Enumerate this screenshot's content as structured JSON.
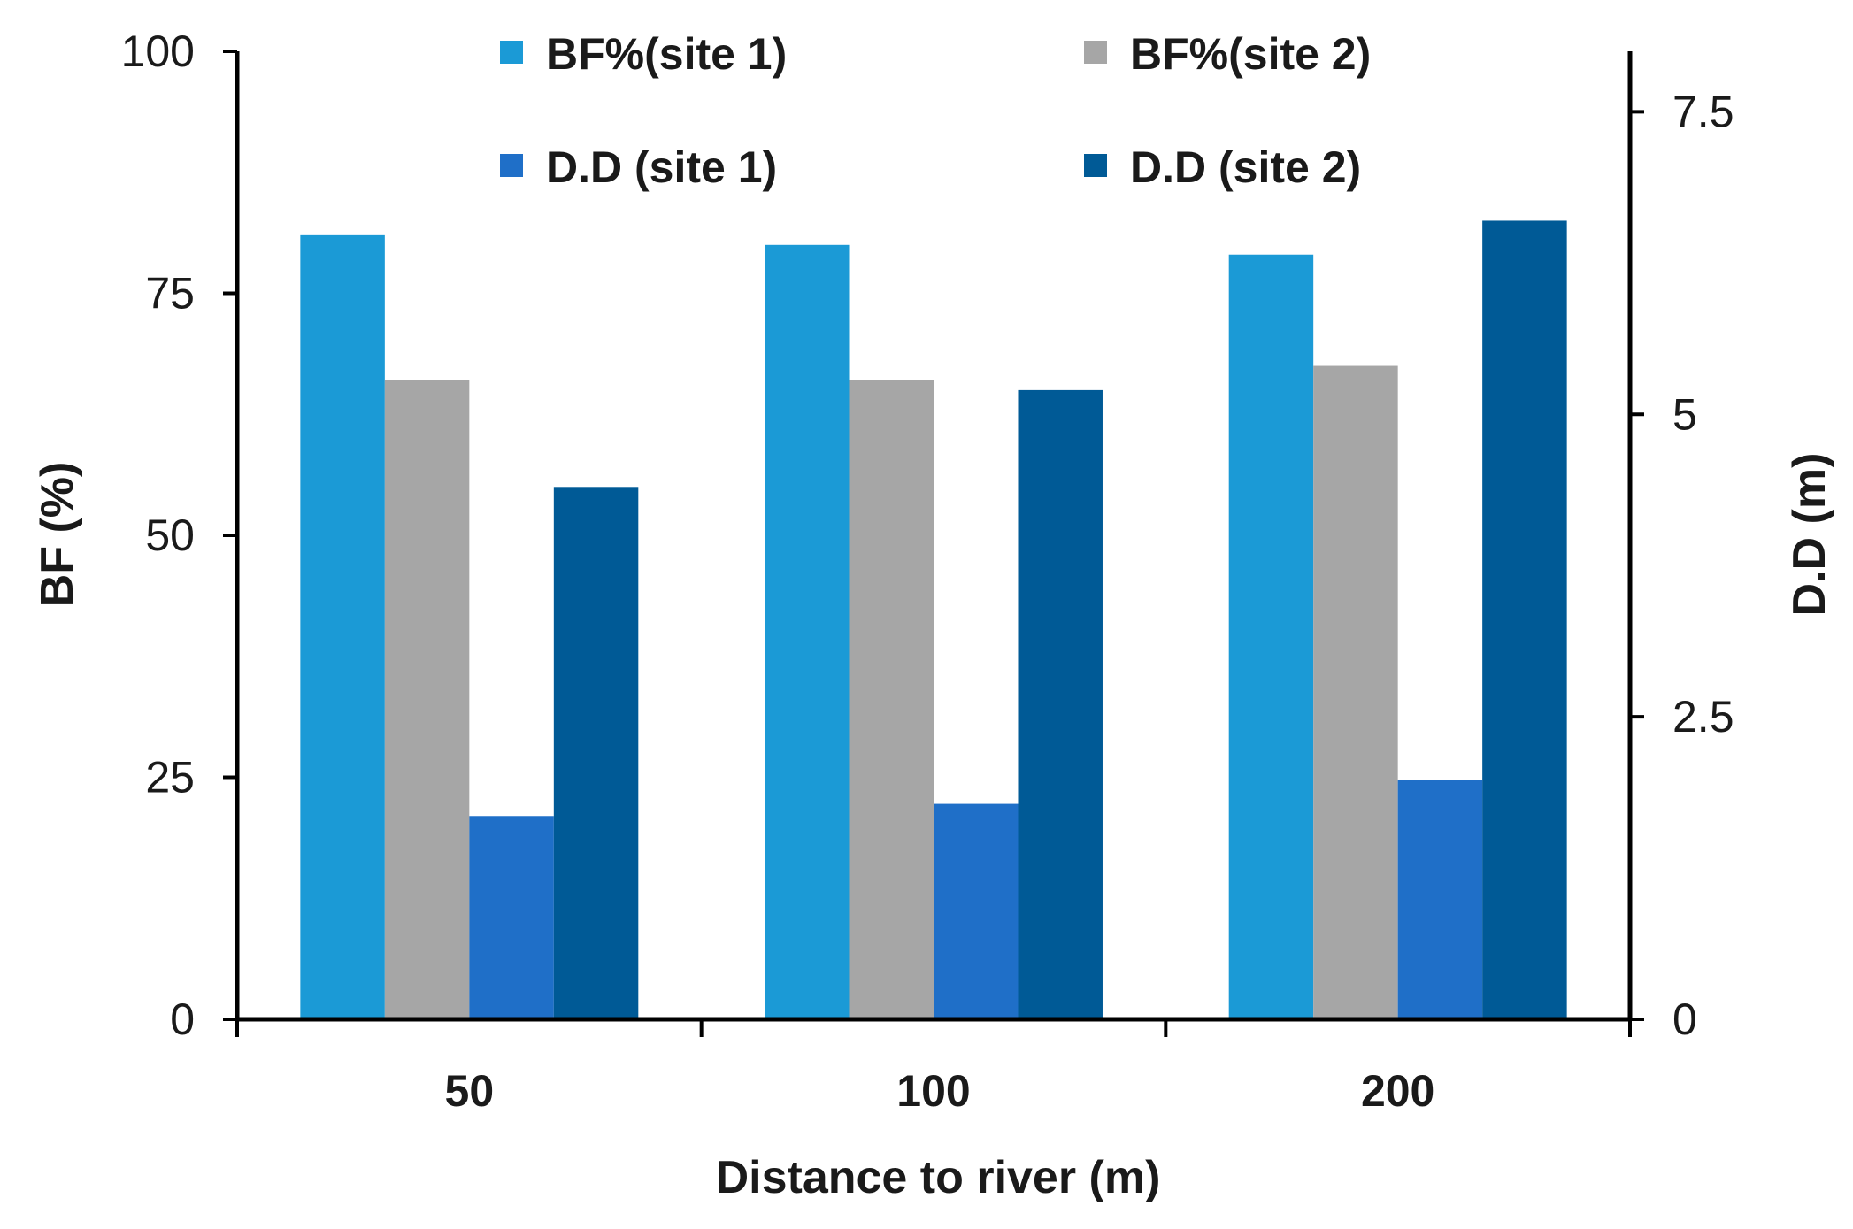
{
  "chart_data": {
    "type": "bar",
    "title": "",
    "xlabel": "Distance to river (m)",
    "ylabel": "BF (%)",
    "y2label": "D.D (m)",
    "categories": [
      "50",
      "100",
      "200"
    ],
    "ylim": [
      0,
      100
    ],
    "y2lim": [
      0,
      8
    ],
    "yticks": [
      "0",
      "25",
      "50",
      "75",
      "100"
    ],
    "y2ticks": [
      "0",
      "2.5",
      "5",
      "7.5"
    ],
    "legend_position": "top",
    "series": [
      {
        "name": "BF%(site 1)",
        "axis": "left",
        "color": "#1b9ad6",
        "values": [
          81,
          80,
          79
        ]
      },
      {
        "name": "BF%(site 2)",
        "axis": "left",
        "color": "#a6a6a6",
        "values": [
          66,
          66,
          67.5
        ]
      },
      {
        "name": "D.D (site 1)",
        "axis": "right",
        "color": "#1f6fc8",
        "values": [
          1.68,
          1.78,
          1.98
        ]
      },
      {
        "name": "D.D (site 2)",
        "axis": "right",
        "color": "#005a96",
        "values": [
          4.4,
          5.2,
          6.6
        ]
      }
    ]
  }
}
